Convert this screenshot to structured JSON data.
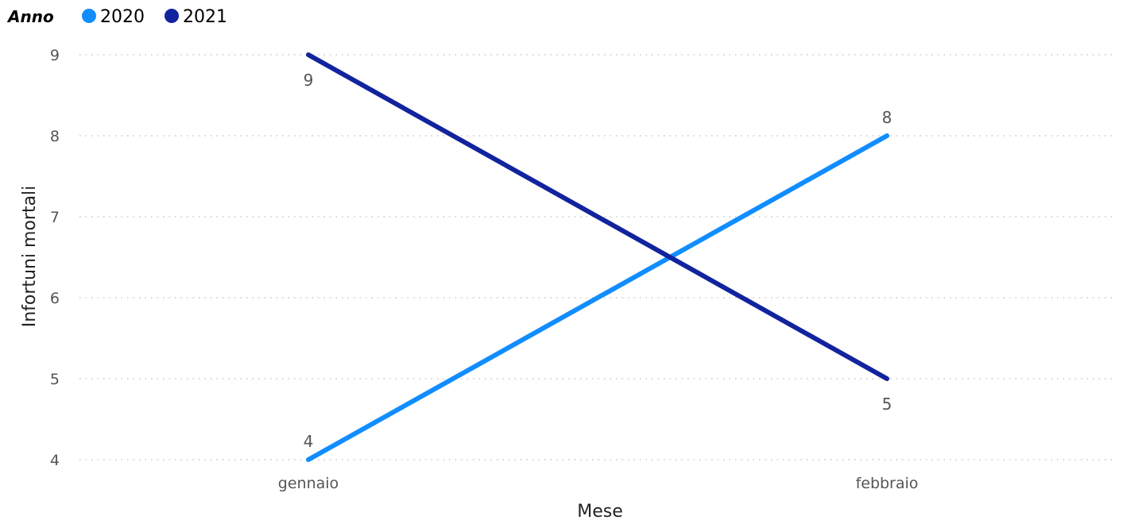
{
  "chart_data": {
    "type": "line",
    "title": "",
    "xlabel": "Mese",
    "ylabel": "Infortuni mortali",
    "categories": [
      "gennaio",
      "febbraio"
    ],
    "ylim": [
      4,
      9
    ],
    "yticks": [
      4,
      5,
      6,
      7,
      8,
      9
    ],
    "grid": true,
    "legend": {
      "title": "Anno",
      "placement": "top-left"
    },
    "series": [
      {
        "name": "2020",
        "values": [
          4,
          8
        ],
        "color": "#118dff"
      },
      {
        "name": "2021",
        "values": [
          9,
          5
        ],
        "color": "#12239e"
      }
    ],
    "data_labels": [
      {
        "series": "2020",
        "category": "gennaio",
        "text": "4",
        "position": "above"
      },
      {
        "series": "2020",
        "category": "febbraio",
        "text": "8",
        "position": "above"
      },
      {
        "series": "2021",
        "category": "gennaio",
        "text": "9",
        "position": "below"
      },
      {
        "series": "2021",
        "category": "febbraio",
        "text": "5",
        "position": "below"
      }
    ]
  }
}
